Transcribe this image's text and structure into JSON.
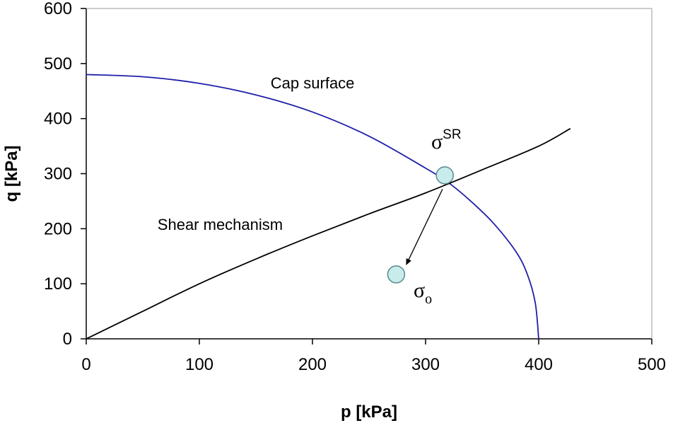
{
  "chart_data": {
    "type": "line",
    "title": "",
    "xlabel": "p [kPa]",
    "ylabel": "q [kPa]",
    "xlim": [
      0,
      500
    ],
    "ylim": [
      0,
      600
    ],
    "xticks": [
      0,
      100,
      200,
      300,
      400,
      500
    ],
    "yticks": [
      0,
      100,
      200,
      300,
      400,
      500,
      600
    ],
    "grid": false,
    "series": [
      {
        "name": "Cap surface",
        "color": "#1f1fa8",
        "x": [
          0,
          50,
          100,
          150,
          200,
          250,
          300,
          320,
          340,
          360,
          380,
          390,
          397,
          400
        ],
        "y": [
          480,
          476,
          464,
          443,
          412,
          368,
          310,
          284,
          250,
          210,
          158,
          117,
          65,
          0
        ]
      },
      {
        "name": "Shear mechanism",
        "color": "#000000",
        "x": [
          0,
          20,
          50,
          100,
          150,
          200,
          250,
          300,
          350,
          400,
          428
        ],
        "y": [
          0,
          20,
          50,
          100,
          145,
          187,
          227,
          265,
          307,
          350,
          382
        ]
      }
    ],
    "points": [
      {
        "name": "sigma_SR",
        "symbol": "σ",
        "script": "SR",
        "x": 317,
        "y": 297
      },
      {
        "name": "sigma_o",
        "symbol": "σ",
        "script": "o",
        "x": 274,
        "y": 117
      }
    ],
    "arrow": {
      "from": [
        315,
        272
      ],
      "to": [
        283,
        135
      ]
    },
    "annotations": [
      {
        "text": "Cap surface",
        "x": 163,
        "y": 455
      },
      {
        "text": "Shear mechanism",
        "x": 63,
        "y": 198
      }
    ],
    "colors": {
      "cap": "#1f1fa8",
      "shear": "#000000",
      "point_fill": "#c8ecec",
      "point_stroke": "#5a8a8a",
      "axis": "#000000"
    }
  }
}
